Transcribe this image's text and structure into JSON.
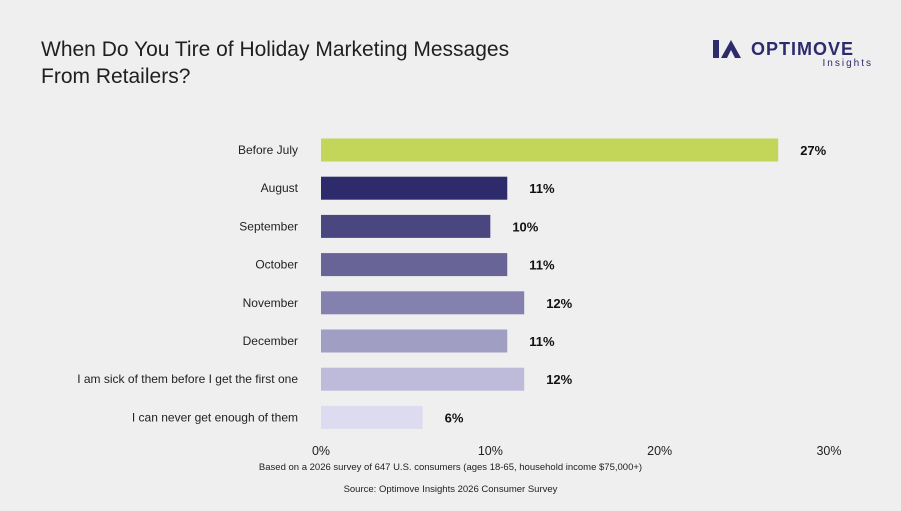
{
  "title_line1": "When Do You Tire of Holiday Marketing Messages",
  "title_line2": "From Retailers?",
  "logo": {
    "name": "OPTIMOVE",
    "sub": "Insights",
    "color": "#2d2b6b"
  },
  "footnote": "Based on a 2026 survey of 647 U.S. consumers (ages 18-65, household income $75,000+)",
  "source": "Source: Optimove Insights 2026 Consumer Survey",
  "chart_data": {
    "type": "bar",
    "orientation": "horizontal",
    "title": "When Do You Tire of Holiday Marketing Messages From Retailers?",
    "categories": [
      "Before July",
      "August",
      "September",
      "October",
      "November",
      "December",
      "I am sick of them before I get the first one",
      "I can never get enough of them"
    ],
    "values": [
      27,
      11,
      10,
      11,
      12,
      11,
      12,
      6
    ],
    "value_labels": [
      "27%",
      "11%",
      "10%",
      "11%",
      "12%",
      "11%",
      "12%",
      "6%"
    ],
    "colors": [
      "#c3d65a",
      "#2d2b6b",
      "#4a4780",
      "#686497",
      "#8581ae",
      "#a19ec4",
      "#bdbbd9",
      "#dddbef"
    ],
    "xlim": [
      0,
      30
    ],
    "xticks": [
      0,
      10,
      20,
      30
    ],
    "xtick_labels": [
      "0%",
      "10%",
      "20%",
      "30%"
    ],
    "grid": false,
    "legend": "none"
  }
}
